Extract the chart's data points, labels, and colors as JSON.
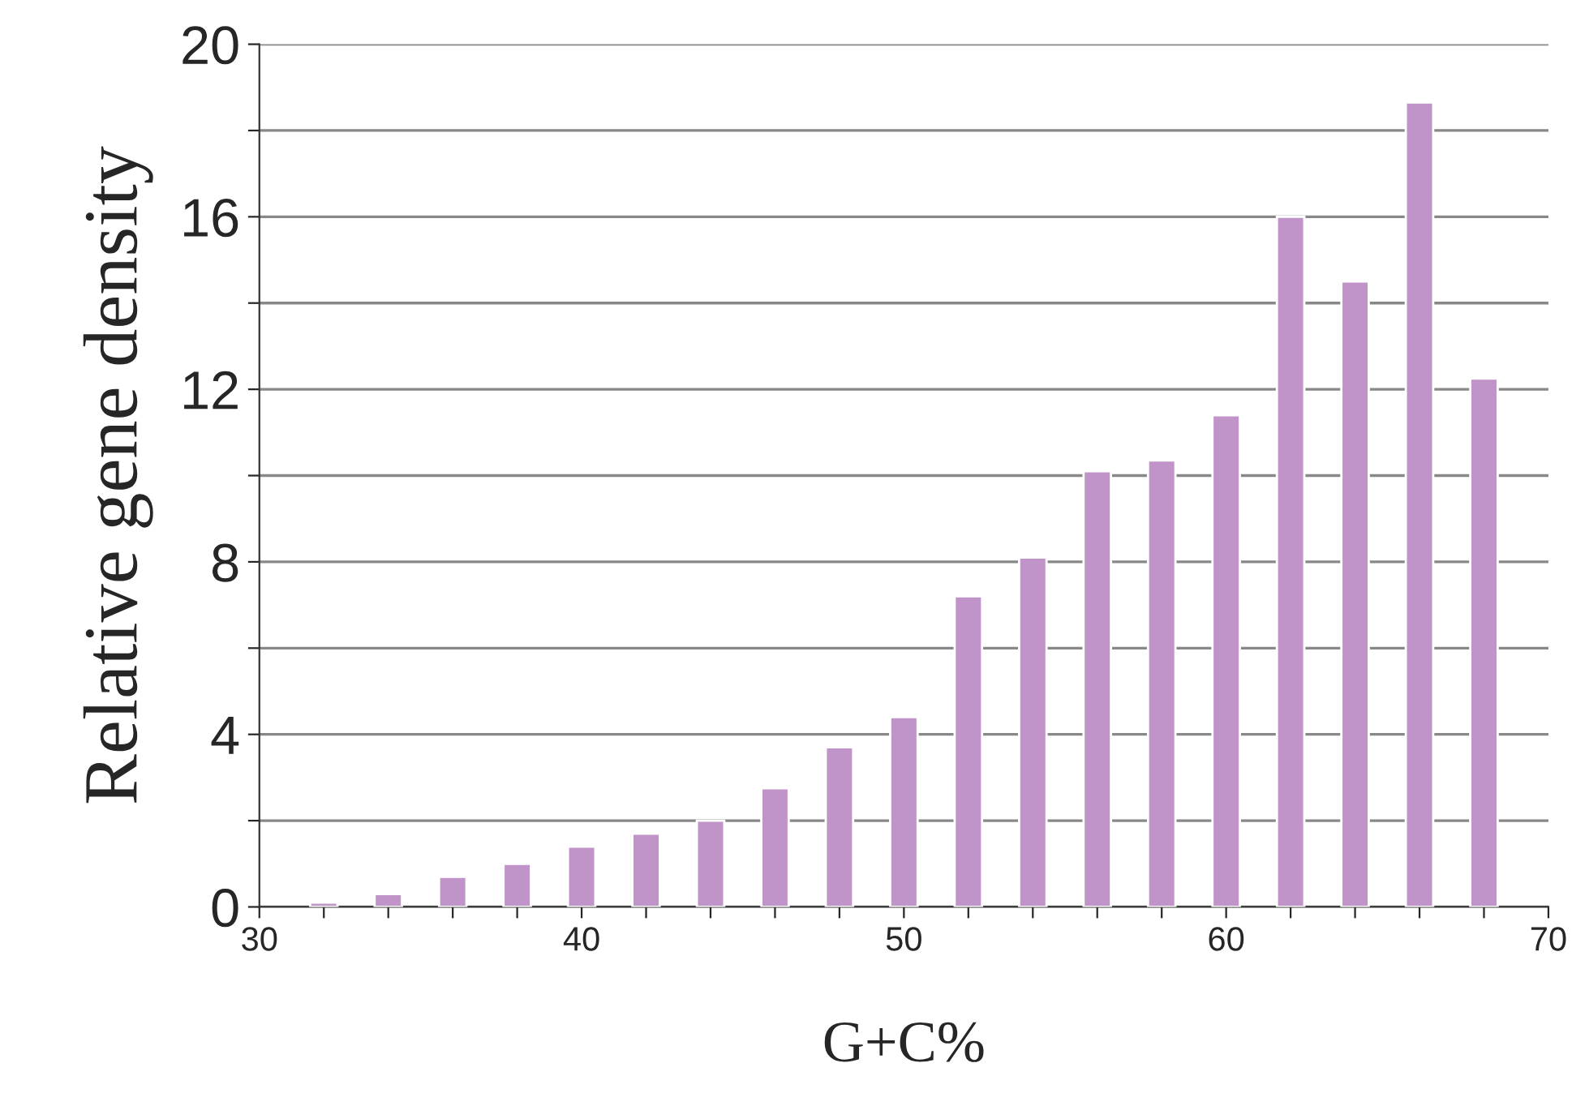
{
  "chart_data": {
    "type": "bar",
    "xlabel": "G+C%",
    "ylabel": "Relative gene density",
    "x": [
      32,
      34,
      36,
      38,
      40,
      42,
      44,
      46,
      48,
      50,
      52,
      54,
      56,
      58,
      60,
      62,
      64,
      66,
      68
    ],
    "values": [
      0.1,
      0.3,
      0.7,
      1.0,
      1.4,
      1.7,
      2.0,
      2.75,
      3.7,
      4.4,
      7.2,
      8.1,
      10.1,
      10.35,
      11.4,
      16.0,
      14.5,
      18.65,
      12.25
    ],
    "color": "#c094c8",
    "xlim": [
      30,
      70
    ],
    "xticks": [
      30,
      {
        "value": 32,
        "label": null
      },
      {
        "value": 34,
        "label": null
      },
      {
        "value": 36,
        "label": null
      },
      {
        "value": 38,
        "label": null
      },
      40,
      {
        "value": 42,
        "label": null
      },
      {
        "value": 44,
        "label": null
      },
      {
        "value": 46,
        "label": null
      },
      {
        "value": 48,
        "label": null
      },
      50,
      {
        "value": 52,
        "label": null
      },
      {
        "value": 54,
        "label": null
      },
      {
        "value": 56,
        "label": null
      },
      {
        "value": 58,
        "label": null
      },
      60,
      {
        "value": 62,
        "label": null
      },
      {
        "value": 64,
        "label": null
      },
      {
        "value": 66,
        "label": null
      },
      {
        "value": 68,
        "label": null
      },
      70
    ],
    "ylim": [
      0,
      20
    ],
    "yticks": [
      0,
      {
        "value": 2,
        "label": null
      },
      4,
      {
        "value": 6,
        "label": null
      },
      8,
      {
        "value": 10,
        "label": null
      },
      12,
      {
        "value": 14,
        "label": null
      },
      16,
      {
        "value": 18,
        "label": null
      },
      20
    ],
    "grid": "y"
  }
}
